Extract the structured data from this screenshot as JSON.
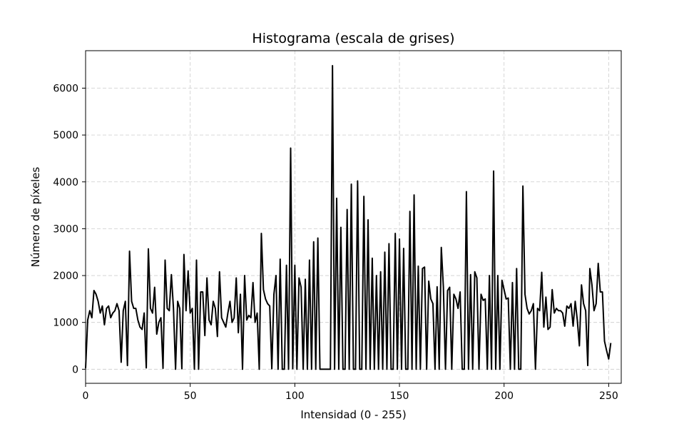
{
  "chart_data": {
    "type": "line",
    "title": "Histograma (escala de grises)",
    "xlabel": "Intensidad (0 - 255)",
    "ylabel": "Número de píxeles",
    "xlim": [
      0,
      256
    ],
    "ylim": [
      -300,
      6800
    ],
    "xticks": [
      0,
      50,
      100,
      150,
      200,
      250
    ],
    "yticks": [
      0,
      1000,
      2000,
      3000,
      4000,
      5000,
      6000
    ],
    "grid": true,
    "line_color": "#000000",
    "grid_color": "#cccccc",
    "series": [
      {
        "name": "",
        "values": [
          20,
          1050,
          1250,
          1100,
          1680,
          1600,
          1450,
          1200,
          1350,
          950,
          1300,
          1350,
          1100,
          1200,
          1250,
          1400,
          1250,
          150,
          1250,
          1450,
          80,
          2520,
          1450,
          1300,
          1300,
          1050,
          900,
          850,
          1200,
          30,
          2570,
          1300,
          1200,
          1750,
          750,
          1000,
          1100,
          20,
          2330,
          1300,
          1250,
          2020,
          1300,
          0,
          1450,
          1300,
          10,
          2450,
          1250,
          2100,
          1200,
          1300,
          0,
          2330,
          0,
          1650,
          1650,
          720,
          1950,
          1050,
          950,
          1450,
          1300,
          700,
          2080,
          1100,
          1000,
          900,
          1200,
          1450,
          1000,
          1100,
          1950,
          780,
          1600,
          0,
          2000,
          1050,
          1150,
          1100,
          1850,
          1000,
          1200,
          0,
          2900,
          1700,
          1500,
          1400,
          1350,
          10,
          1600,
          2000,
          0,
          2350,
          0,
          0,
          2220,
          0,
          4720,
          10,
          2220,
          0,
          1950,
          1750,
          0,
          1920,
          0,
          2330,
          0,
          2720,
          0,
          2800,
          0,
          0,
          0,
          0,
          0,
          0,
          6480,
          0,
          3650,
          0,
          3030,
          0,
          0,
          3410,
          0,
          3950,
          0,
          0,
          4020,
          0,
          0,
          3690,
          0,
          3190,
          0,
          2370,
          0,
          2000,
          0,
          2080,
          0,
          2500,
          0,
          2680,
          0,
          0,
          2900,
          0,
          2780,
          0,
          2580,
          0,
          0,
          3370,
          0,
          3720,
          0,
          2200,
          0,
          2150,
          2180,
          0,
          1880,
          1500,
          1400,
          0,
          1760,
          0,
          2600,
          1750,
          0,
          1680,
          1750,
          0,
          1600,
          1500,
          1300,
          1650,
          0,
          0,
          3790,
          0,
          2020,
          0,
          2080,
          1950,
          0,
          1600,
          1470,
          1500,
          0,
          2000,
          0,
          4230,
          0,
          2000,
          0,
          1900,
          1700,
          1500,
          1520,
          0,
          1850,
          0,
          2150,
          0,
          0,
          3910,
          1600,
          1300,
          1180,
          1250,
          1400,
          0,
          1300,
          1250,
          2070,
          900,
          1540,
          850,
          900,
          1700,
          1200,
          1300,
          1250,
          1250,
          1200,
          920,
          1350,
          1300,
          1400,
          920,
          1450,
          1050,
          500,
          1800,
          1400,
          1250,
          80,
          2150,
          1800,
          1250,
          1400,
          2260,
          1650,
          1650,
          600,
          400,
          220,
          560
        ]
      }
    ]
  }
}
